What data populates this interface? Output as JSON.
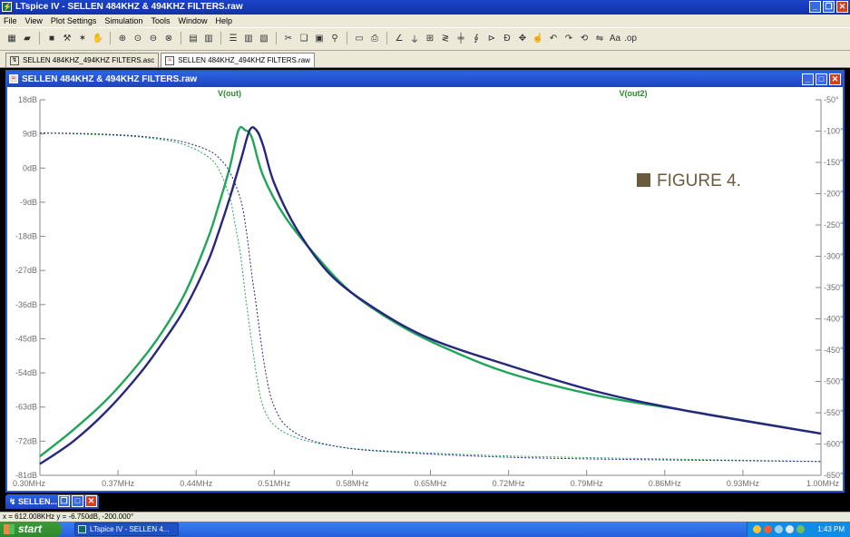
{
  "app": {
    "title": "LTspice IV - SELLEN 484KHZ & 494KHZ FILTERS.raw"
  },
  "menu": [
    "File",
    "View",
    "Plot Settings",
    "Simulation",
    "Tools",
    "Window",
    "Help"
  ],
  "tabs": [
    {
      "label": "SELLEN 484KHZ_494KHZ FILTERS.asc",
      "icon": "schematic-icon"
    },
    {
      "label": "SELLEN 484KHZ_494KHZ FILTERS.raw",
      "icon": "waveform-icon"
    }
  ],
  "plot_window": {
    "title": "SELLEN 484KHZ & 494KHZ FILTERS.raw"
  },
  "annotation": "FIGURE 4.",
  "minimized_window": {
    "title": "SELLEN..."
  },
  "status": {
    "text": "x = 612.008KHz   y = -6.750dB, -200.000°"
  },
  "taskbar": {
    "start": "start",
    "task": "LTspice IV - SELLEN 4...",
    "clock": "1:43 PM"
  },
  "colors": {
    "vout": "#22a55a",
    "vout2": "#26267d",
    "axis": "#8a8a8a",
    "tick_text": "#6e6e6e",
    "trace_label": "#2a8a2a",
    "title_blue": "#2a56d8"
  },
  "chart_data": {
    "type": "line",
    "traces": [
      "V(out)",
      "V(out2)"
    ],
    "x_ticks": [
      "0.30MHz",
      "0.37MHz",
      "0.44MHz",
      "0.51MHz",
      "0.58MHz",
      "0.65MHz",
      "0.72MHz",
      "0.79MHz",
      "0.86MHz",
      "0.93MHz",
      "1.00MHz"
    ],
    "xlim": [
      0.3,
      1.0
    ],
    "y_left_ticks": [
      "18dB",
      "9dB",
      "0dB",
      "-9dB",
      "-18dB",
      "-27dB",
      "-36dB",
      "-45dB",
      "-54dB",
      "-63dB",
      "-72dB",
      "-81dB"
    ],
    "ylim_left": [
      -81,
      18
    ],
    "y_right_ticks": [
      "-50°",
      "-100°",
      "-150°",
      "-200°",
      "-250°",
      "-300°",
      "-350°",
      "-400°",
      "-450°",
      "-500°",
      "-550°",
      "-600°",
      "-650°"
    ],
    "ylim_right": [
      -650,
      -50
    ],
    "series": [
      {
        "name": "V(out)",
        "kind": "magnitude",
        "color": "#22a55a",
        "x": [
          0.3,
          0.33,
          0.36,
          0.39,
          0.41,
          0.43,
          0.45,
          0.46,
          0.47,
          0.478,
          0.484,
          0.49,
          0.5,
          0.52,
          0.55,
          0.58,
          0.62,
          0.66,
          0.72,
          0.8,
          0.88,
          1.0
        ],
        "y": [
          -76,
          -69,
          -61,
          -51,
          -43,
          -33,
          -19,
          -10,
          0,
          10,
          10,
          8,
          -2,
          -13,
          -24,
          -33,
          -41,
          -47,
          -54,
          -60,
          -64,
          -70
        ]
      },
      {
        "name": "V(out2)",
        "kind": "magnitude",
        "color": "#26267d",
        "x": [
          0.3,
          0.33,
          0.36,
          0.39,
          0.41,
          0.43,
          0.45,
          0.46,
          0.47,
          0.48,
          0.488,
          0.494,
          0.5,
          0.51,
          0.53,
          0.56,
          0.6,
          0.65,
          0.72,
          0.8,
          0.88,
          1.0
        ],
        "y": [
          -78,
          -72,
          -64,
          -54,
          -46,
          -37,
          -25,
          -17,
          -8,
          2,
          10,
          10,
          6,
          -4,
          -16,
          -28,
          -37,
          -45,
          -52,
          -59,
          -64,
          -70
        ]
      },
      {
        "name": "V(out)",
        "kind": "phase",
        "color": "#22a55a",
        "x": [
          0.3,
          0.34,
          0.38,
          0.41,
          0.43,
          0.45,
          0.46,
          0.47,
          0.475,
          0.48,
          0.484,
          0.49,
          0.495,
          0.5,
          0.51,
          0.53,
          0.56,
          0.6,
          0.7,
          0.8,
          1.0
        ],
        "y": [
          -103,
          -105,
          -108,
          -114,
          -122,
          -140,
          -160,
          -205,
          -250,
          -300,
          -360,
          -440,
          -500,
          -540,
          -570,
          -590,
          -602,
          -610,
          -618,
          -622,
          -628
        ]
      },
      {
        "name": "V(out2)",
        "kind": "phase",
        "color": "#26267d",
        "x": [
          0.3,
          0.34,
          0.38,
          0.41,
          0.43,
          0.45,
          0.46,
          0.47,
          0.48,
          0.485,
          0.49,
          0.494,
          0.5,
          0.505,
          0.51,
          0.52,
          0.54,
          0.57,
          0.61,
          0.7,
          0.8,
          1.0
        ],
        "y": [
          -103,
          -104,
          -107,
          -112,
          -118,
          -130,
          -142,
          -165,
          -210,
          -260,
          -330,
          -380,
          -460,
          -510,
          -540,
          -570,
          -592,
          -605,
          -612,
          -620,
          -624,
          -628
        ]
      }
    ]
  }
}
